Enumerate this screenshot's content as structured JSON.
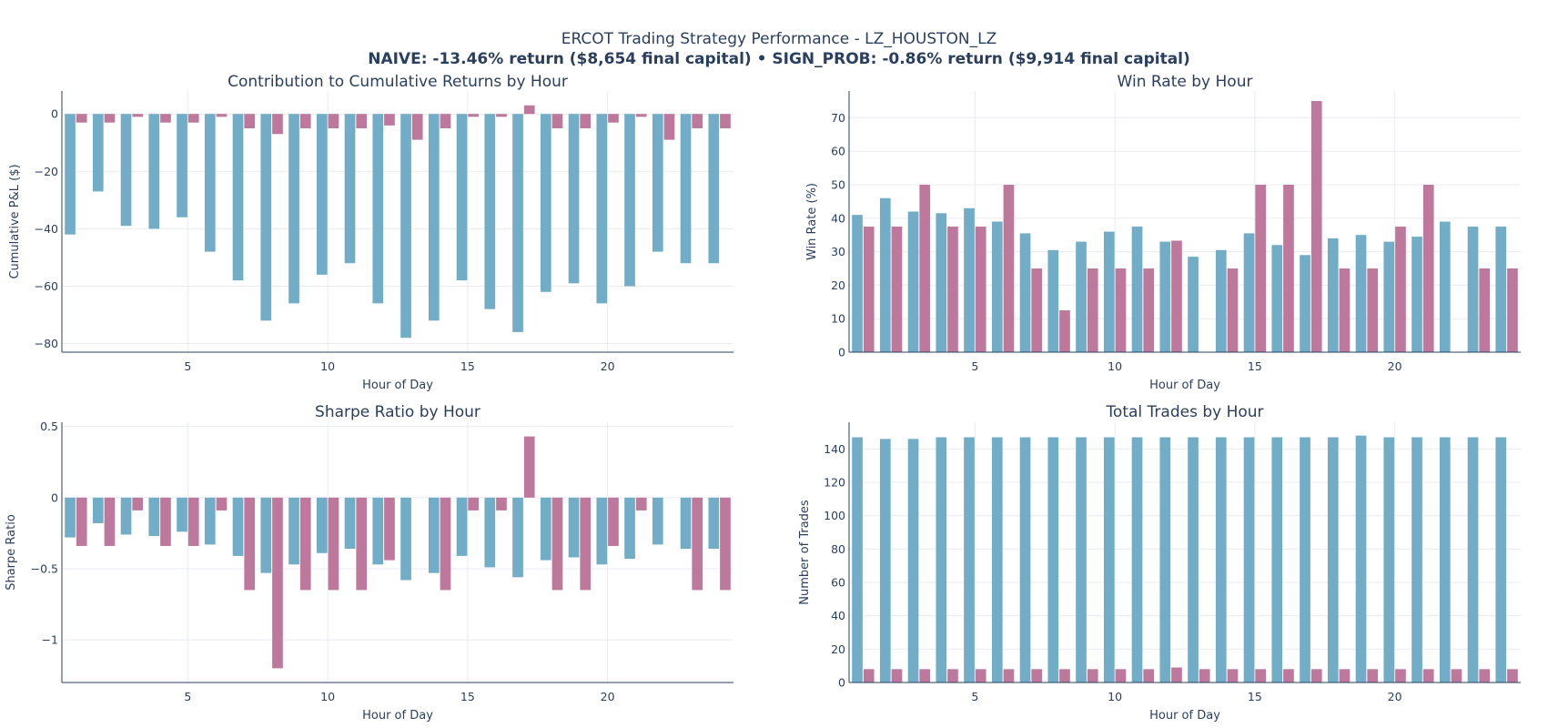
{
  "title": "ERCOT Trading Strategy Performance - LZ_HOUSTON_LZ",
  "subtitle": "NAIVE: -13.46% return ($8,654 final capital) • SIGN_PROB: -0.86% return ($9,914 final capital)",
  "colors": {
    "naive": "#6aa9c4",
    "sign_prob": "#bb7196"
  },
  "chart_data": [
    {
      "id": "pnl",
      "type": "bar",
      "title": "Contribution to Cumulative Returns by Hour",
      "xlabel": "Hour of Day",
      "ylabel": "Cumulative P&L ($)",
      "xlim": [
        0.5,
        24.5
      ],
      "ylim": [
        -83,
        8
      ],
      "xticks": [
        5,
        10,
        15,
        20
      ],
      "yticks": [
        0,
        -20,
        -40,
        -60,
        -80
      ],
      "ytick_labels": [
        "0",
        "−20",
        "−40",
        "−60",
        "−80"
      ],
      "x": [
        1,
        2,
        3,
        4,
        5,
        6,
        7,
        8,
        9,
        10,
        11,
        12,
        13,
        14,
        15,
        16,
        17,
        18,
        19,
        20,
        21,
        22,
        23,
        24
      ],
      "series": [
        {
          "key": "naive",
          "values": [
            -42,
            -27,
            -39,
            -40,
            -36,
            -48,
            -58,
            -72,
            -66,
            -56,
            -52,
            -66,
            -78,
            -72,
            -58,
            -68,
            -76,
            -62,
            -59,
            -66,
            -60,
            -48,
            -52,
            -52
          ]
        },
        {
          "key": "sign_prob",
          "values": [
            -3,
            -3,
            -1,
            -3,
            -3,
            -1,
            -5,
            -7,
            -5,
            -5,
            -5,
            -4,
            -9,
            -5,
            -1,
            -1,
            3,
            -5,
            -5,
            -3,
            -1,
            -9,
            -5,
            -5
          ]
        }
      ]
    },
    {
      "id": "winrate",
      "type": "bar",
      "title": "Win Rate by Hour",
      "xlabel": "Hour of Day",
      "ylabel": "Win Rate (%)",
      "xlim": [
        0.5,
        24.5
      ],
      "ylim": [
        0,
        78
      ],
      "xticks": [
        5,
        10,
        15,
        20
      ],
      "yticks": [
        0,
        10,
        20,
        30,
        40,
        50,
        60,
        70
      ],
      "ytick_labels": [
        "0",
        "10",
        "20",
        "30",
        "40",
        "50",
        "60",
        "70"
      ],
      "x": [
        1,
        2,
        3,
        4,
        5,
        6,
        7,
        8,
        9,
        10,
        11,
        12,
        13,
        14,
        15,
        16,
        17,
        18,
        19,
        20,
        21,
        22,
        23,
        24
      ],
      "series": [
        {
          "key": "naive",
          "values": [
            41,
            46,
            42,
            41.5,
            43,
            39,
            35.5,
            30.5,
            33,
            36,
            37.5,
            33,
            28.5,
            30.5,
            35.5,
            32,
            29,
            34,
            35,
            33,
            34.5,
            39,
            37.5,
            37.5
          ]
        },
        {
          "key": "sign_prob",
          "values": [
            37.5,
            37.5,
            50,
            37.5,
            37.5,
            50,
            25,
            12.5,
            25,
            25,
            25,
            33.3,
            0,
            25,
            50,
            50,
            75,
            25,
            25,
            37.5,
            50,
            0,
            25,
            25
          ]
        }
      ]
    },
    {
      "id": "sharpe",
      "type": "bar",
      "title": "Sharpe Ratio by Hour",
      "xlabel": "Hour of Day",
      "ylabel": "Sharpe Ratio",
      "xlim": [
        0.5,
        24.5
      ],
      "ylim": [
        -1.3,
        0.53
      ],
      "xticks": [
        5,
        10,
        15,
        20
      ],
      "yticks": [
        0.5,
        0,
        -0.5,
        -1
      ],
      "ytick_labels": [
        "0.5",
        "0",
        "−0.5",
        "−1"
      ],
      "x": [
        1,
        2,
        3,
        4,
        5,
        6,
        7,
        8,
        9,
        10,
        11,
        12,
        13,
        14,
        15,
        16,
        17,
        18,
        19,
        20,
        21,
        22,
        23,
        24
      ],
      "series": [
        {
          "key": "naive",
          "values": [
            -0.28,
            -0.18,
            -0.26,
            -0.27,
            -0.24,
            -0.33,
            -0.41,
            -0.53,
            -0.47,
            -0.39,
            -0.36,
            -0.47,
            -0.58,
            -0.53,
            -0.41,
            -0.49,
            -0.56,
            -0.44,
            -0.42,
            -0.47,
            -0.43,
            -0.33,
            -0.36,
            -0.36
          ]
        },
        {
          "key": "sign_prob",
          "values": [
            -0.34,
            -0.34,
            -0.09,
            -0.34,
            -0.34,
            -0.09,
            -0.65,
            -1.2,
            -0.65,
            -0.65,
            -0.65,
            -0.44,
            0,
            -0.65,
            -0.09,
            -0.09,
            0.43,
            -0.65,
            -0.65,
            -0.34,
            -0.09,
            0,
            -0.65,
            -0.65
          ]
        }
      ]
    },
    {
      "id": "trades",
      "type": "bar",
      "title": "Total Trades by Hour",
      "xlabel": "Hour of Day",
      "ylabel": "Number of Trades",
      "xlim": [
        0.5,
        24.5
      ],
      "ylim": [
        0,
        156
      ],
      "xticks": [
        5,
        10,
        15,
        20
      ],
      "yticks": [
        0,
        20,
        40,
        60,
        80,
        100,
        120,
        140
      ],
      "ytick_labels": [
        "0",
        "20",
        "40",
        "60",
        "80",
        "100",
        "120",
        "140"
      ],
      "x": [
        1,
        2,
        3,
        4,
        5,
        6,
        7,
        8,
        9,
        10,
        11,
        12,
        13,
        14,
        15,
        16,
        17,
        18,
        19,
        20,
        21,
        22,
        23,
        24
      ],
      "series": [
        {
          "key": "naive",
          "values": [
            147,
            146,
            146,
            147,
            147,
            147,
            147,
            147,
            147,
            147,
            147,
            147,
            147,
            147,
            147,
            147,
            147,
            147,
            148,
            147,
            147,
            147,
            147,
            147
          ]
        },
        {
          "key": "sign_prob",
          "values": [
            8,
            8,
            8,
            8,
            8,
            8,
            8,
            8,
            8,
            8,
            8,
            9,
            8,
            8,
            8,
            8,
            8,
            8,
            8,
            8,
            8,
            8,
            8,
            8
          ]
        }
      ]
    }
  ]
}
